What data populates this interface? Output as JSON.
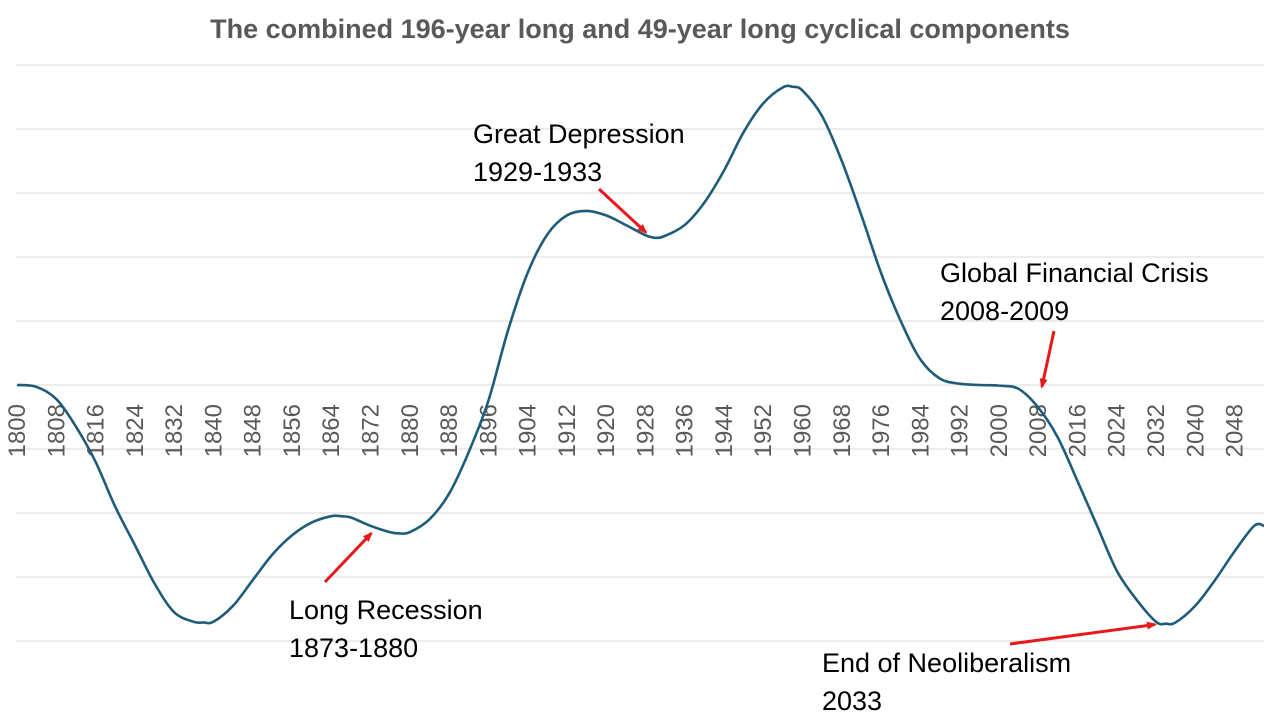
{
  "colors": {
    "series": "#1f5c7a",
    "arrow": "#e8191a",
    "grid": "#d9d9d9",
    "tick": "#595959"
  },
  "chart_data": {
    "type": "line",
    "title": "The combined 196-year long and 49-year long cyclical components",
    "xlabel": "",
    "ylabel": "",
    "grid": true,
    "xlim": [
      1800,
      2054
    ],
    "ylim": [
      -4,
      5
    ],
    "x_ticks": [
      1800,
      1808,
      1816,
      1824,
      1832,
      1840,
      1848,
      1856,
      1864,
      1872,
      1880,
      1888,
      1896,
      1904,
      1912,
      1920,
      1928,
      1936,
      1944,
      1952,
      1960,
      1968,
      1976,
      1984,
      1992,
      2000,
      2008,
      2016,
      2024,
      2032,
      2040,
      2048
    ],
    "series": [
      {
        "x": [
          1800,
          1804,
          1808,
          1812,
          1816,
          1820,
          1824,
          1828,
          1832,
          1836,
          1838,
          1840,
          1844,
          1848,
          1852,
          1856,
          1860,
          1864,
          1866,
          1868,
          1872,
          1876,
          1878,
          1880,
          1884,
          1888,
          1892,
          1896,
          1900,
          1904,
          1908,
          1912,
          1916,
          1920,
          1924,
          1928,
          1930,
          1932,
          1936,
          1940,
          1944,
          1948,
          1952,
          1956,
          1958,
          1960,
          1964,
          1968,
          1972,
          1976,
          1980,
          1984,
          1988,
          1992,
          1996,
          2000,
          2004,
          2008,
          2012,
          2016,
          2020,
          2024,
          2028,
          2032,
          2034,
          2036,
          2040,
          2044,
          2048,
          2052,
          2054
        ],
        "y": [
          0,
          -0.03,
          -0.22,
          -0.65,
          -1.2,
          -1.9,
          -2.5,
          -3.1,
          -3.55,
          -3.7,
          -3.71,
          -3.7,
          -3.45,
          -3.05,
          -2.65,
          -2.35,
          -2.15,
          -2.05,
          -2.05,
          -2.07,
          -2.2,
          -2.3,
          -2.32,
          -2.3,
          -2.1,
          -1.7,
          -1.05,
          -0.25,
          0.85,
          1.75,
          2.35,
          2.65,
          2.72,
          2.65,
          2.5,
          2.34,
          2.3,
          2.33,
          2.5,
          2.85,
          3.35,
          3.95,
          4.4,
          4.65,
          4.66,
          4.6,
          4.2,
          3.5,
          2.65,
          1.75,
          1.0,
          0.4,
          0.1,
          0.02,
          0.0,
          -0.01,
          -0.06,
          -0.35,
          -0.82,
          -1.5,
          -2.2,
          -2.9,
          -3.35,
          -3.7,
          -3.73,
          -3.71,
          -3.45,
          -3.05,
          -2.6,
          -2.2,
          -2.2
        ]
      }
    ],
    "annotations": [
      {
        "lines": [
          "Long Recession",
          "1873-1880"
        ],
        "x": 1873,
        "y": -2.25
      },
      {
        "lines": [
          "Great Depression",
          "1929-1933"
        ],
        "x": 1929,
        "y": 2.32
      },
      {
        "lines": [
          "Global Financial Crisis",
          "2008-2009"
        ],
        "x": 2008.5,
        "y": -0.12
      },
      {
        "lines": [
          "End of Neoliberalism",
          "2033"
        ],
        "x": 2033,
        "y": -3.73
      }
    ]
  }
}
